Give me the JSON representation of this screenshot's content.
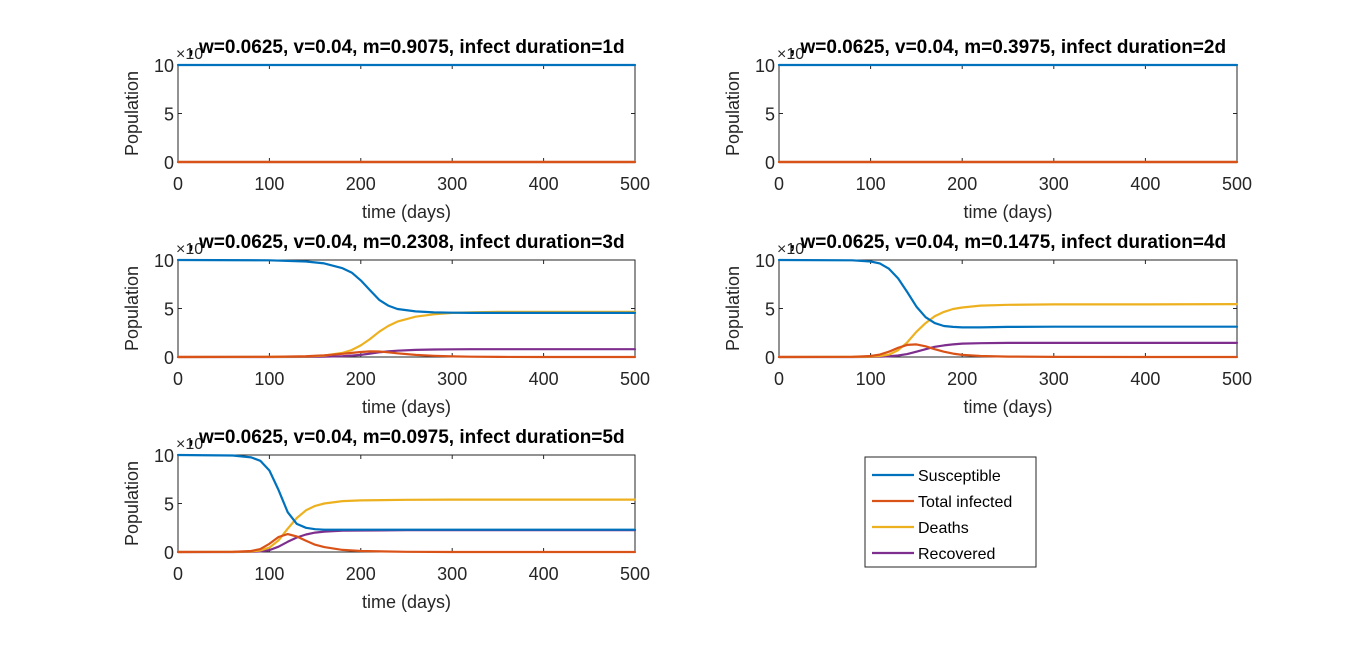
{
  "chart_data": [
    {
      "type": "line",
      "title": ", w=0.0625, v=0.04, m=0.9075, infect duration=1d",
      "xlabel": "time (days)",
      "ylabel": "Population",
      "y_exponent_label": "×10",
      "xlim": [
        0,
        500
      ],
      "ylim": [
        0,
        10
      ],
      "xticks": [
        0,
        100,
        200,
        300,
        400,
        500
      ],
      "yticks": [
        0,
        5,
        10
      ],
      "x": [
        0,
        500
      ],
      "series": [
        {
          "name": "Susceptible",
          "values": [
            10,
            10
          ]
        },
        {
          "name": "Total infected",
          "values": [
            0,
            0
          ]
        },
        {
          "name": "Deaths",
          "values": [
            0,
            0
          ]
        },
        {
          "name": "Recovered",
          "values": [
            0,
            0
          ]
        }
      ]
    },
    {
      "type": "line",
      "title": ", w=0.0625, v=0.04, m=0.3975, infect duration=2d",
      "xlabel": "time (days)",
      "ylabel": "Population",
      "y_exponent_label": "×10",
      "xlim": [
        0,
        500
      ],
      "ylim": [
        0,
        10
      ],
      "xticks": [
        0,
        100,
        200,
        300,
        400,
        500
      ],
      "yticks": [
        0,
        5,
        10
      ],
      "x": [
        0,
        500
      ],
      "series": [
        {
          "name": "Susceptible",
          "values": [
            10,
            10
          ]
        },
        {
          "name": "Total infected",
          "values": [
            0,
            0
          ]
        },
        {
          "name": "Deaths",
          "values": [
            0,
            0
          ]
        },
        {
          "name": "Recovered",
          "values": [
            0,
            0
          ]
        }
      ]
    },
    {
      "type": "line",
      "title": ", w=0.0625, v=0.04, m=0.2308, infect duration=3d",
      "xlabel": "time (days)",
      "ylabel": "Population",
      "y_exponent_label": "×10",
      "xlim": [
        0,
        500
      ],
      "ylim": [
        0,
        10
      ],
      "xticks": [
        0,
        100,
        200,
        300,
        400,
        500
      ],
      "yticks": [
        0,
        5,
        10
      ],
      "x": [
        0,
        100,
        140,
        160,
        180,
        190,
        200,
        210,
        220,
        230,
        240,
        260,
        280,
        300,
        320,
        350,
        400,
        500
      ],
      "series": [
        {
          "name": "Susceptible",
          "values": [
            10,
            9.97,
            9.85,
            9.65,
            9.15,
            8.7,
            7.9,
            6.9,
            5.9,
            5.3,
            4.95,
            4.7,
            4.6,
            4.57,
            4.55,
            4.55,
            4.55,
            4.55
          ]
        },
        {
          "name": "Total infected",
          "values": [
            0,
            0.02,
            0.08,
            0.18,
            0.33,
            0.42,
            0.52,
            0.58,
            0.57,
            0.48,
            0.38,
            0.22,
            0.12,
            0.06,
            0.03,
            0.01,
            0,
            0
          ]
        },
        {
          "name": "Deaths",
          "values": [
            0,
            0.01,
            0.05,
            0.14,
            0.42,
            0.72,
            1.2,
            1.85,
            2.6,
            3.2,
            3.65,
            4.15,
            4.4,
            4.55,
            4.6,
            4.65,
            4.65,
            4.65
          ]
        },
        {
          "name": "Recovered",
          "values": [
            0,
            0,
            0.01,
            0.03,
            0.08,
            0.14,
            0.22,
            0.35,
            0.48,
            0.58,
            0.65,
            0.73,
            0.77,
            0.79,
            0.8,
            0.8,
            0.8,
            0.8
          ]
        }
      ]
    },
    {
      "type": "line",
      "title": ", w=0.0625, v=0.04, m=0.1475, infect duration=4d",
      "xlabel": "time (days)",
      "ylabel": "Population",
      "y_exponent_label": "×10",
      "xlim": [
        0,
        500
      ],
      "ylim": [
        0,
        10
      ],
      "xticks": [
        0,
        100,
        200,
        300,
        400,
        500
      ],
      "yticks": [
        0,
        5,
        10
      ],
      "x": [
        0,
        80,
        100,
        110,
        120,
        130,
        140,
        150,
        160,
        170,
        180,
        190,
        200,
        220,
        250,
        300,
        400,
        500
      ],
      "series": [
        {
          "name": "Susceptible",
          "values": [
            10,
            9.97,
            9.85,
            9.65,
            9.1,
            8.1,
            6.7,
            5.2,
            4.1,
            3.5,
            3.2,
            3.1,
            3.05,
            3.05,
            3.1,
            3.12,
            3.12,
            3.12
          ]
        },
        {
          "name": "Total infected",
          "values": [
            0,
            0.02,
            0.1,
            0.25,
            0.55,
            0.95,
            1.25,
            1.3,
            1.1,
            0.8,
            0.55,
            0.35,
            0.22,
            0.1,
            0.04,
            0.01,
            0,
            0
          ]
        },
        {
          "name": "Deaths",
          "values": [
            0,
            0.01,
            0.04,
            0.1,
            0.25,
            0.7,
            1.5,
            2.6,
            3.5,
            4.2,
            4.65,
            4.95,
            5.1,
            5.3,
            5.38,
            5.42,
            5.42,
            5.45
          ]
        },
        {
          "name": "Recovered",
          "values": [
            0,
            0,
            0.01,
            0.03,
            0.07,
            0.15,
            0.3,
            0.55,
            0.8,
            1.05,
            1.2,
            1.3,
            1.38,
            1.42,
            1.45,
            1.45,
            1.45,
            1.45
          ]
        }
      ]
    },
    {
      "type": "line",
      "title": ", w=0.0625, v=0.04, m=0.0975, infect duration=5d",
      "xlabel": "time (days)",
      "ylabel": "Population",
      "y_exponent_label": "×10",
      "xlim": [
        0,
        500
      ],
      "ylim": [
        0,
        10
      ],
      "xticks": [
        0,
        100,
        200,
        300,
        400,
        500
      ],
      "yticks": [
        0,
        5,
        10
      ],
      "x": [
        0,
        60,
        80,
        90,
        100,
        110,
        120,
        130,
        140,
        150,
        160,
        180,
        200,
        250,
        300,
        400,
        500
      ],
      "series": [
        {
          "name": "Susceptible",
          "values": [
            10,
            9.95,
            9.75,
            9.4,
            8.4,
            6.4,
            4.1,
            2.9,
            2.5,
            2.35,
            2.3,
            2.3,
            2.3,
            2.3,
            2.3,
            2.3,
            2.3
          ]
        },
        {
          "name": "Total infected",
          "values": [
            0,
            0.02,
            0.1,
            0.3,
            0.85,
            1.55,
            1.85,
            1.6,
            1.15,
            0.75,
            0.5,
            0.22,
            0.1,
            0.02,
            0,
            0,
            0
          ]
        },
        {
          "name": "Deaths",
          "values": [
            0,
            0.01,
            0.05,
            0.15,
            0.45,
            1.2,
            2.4,
            3.5,
            4.3,
            4.75,
            5.0,
            5.25,
            5.32,
            5.38,
            5.4,
            5.4,
            5.4
          ]
        },
        {
          "name": "Recovered",
          "values": [
            0,
            0,
            0.02,
            0.06,
            0.2,
            0.55,
            1.05,
            1.5,
            1.8,
            2.0,
            2.1,
            2.2,
            2.22,
            2.25,
            2.25,
            2.25,
            2.25
          ]
        }
      ]
    }
  ],
  "legend": {
    "position": "lower-right",
    "entries": [
      "Susceptible",
      "Total infected",
      "Deaths",
      "Recovered"
    ]
  },
  "series_colors": [
    "#0072BD",
    "#D95319",
    "#EDB120",
    "#7E2F8E"
  ]
}
